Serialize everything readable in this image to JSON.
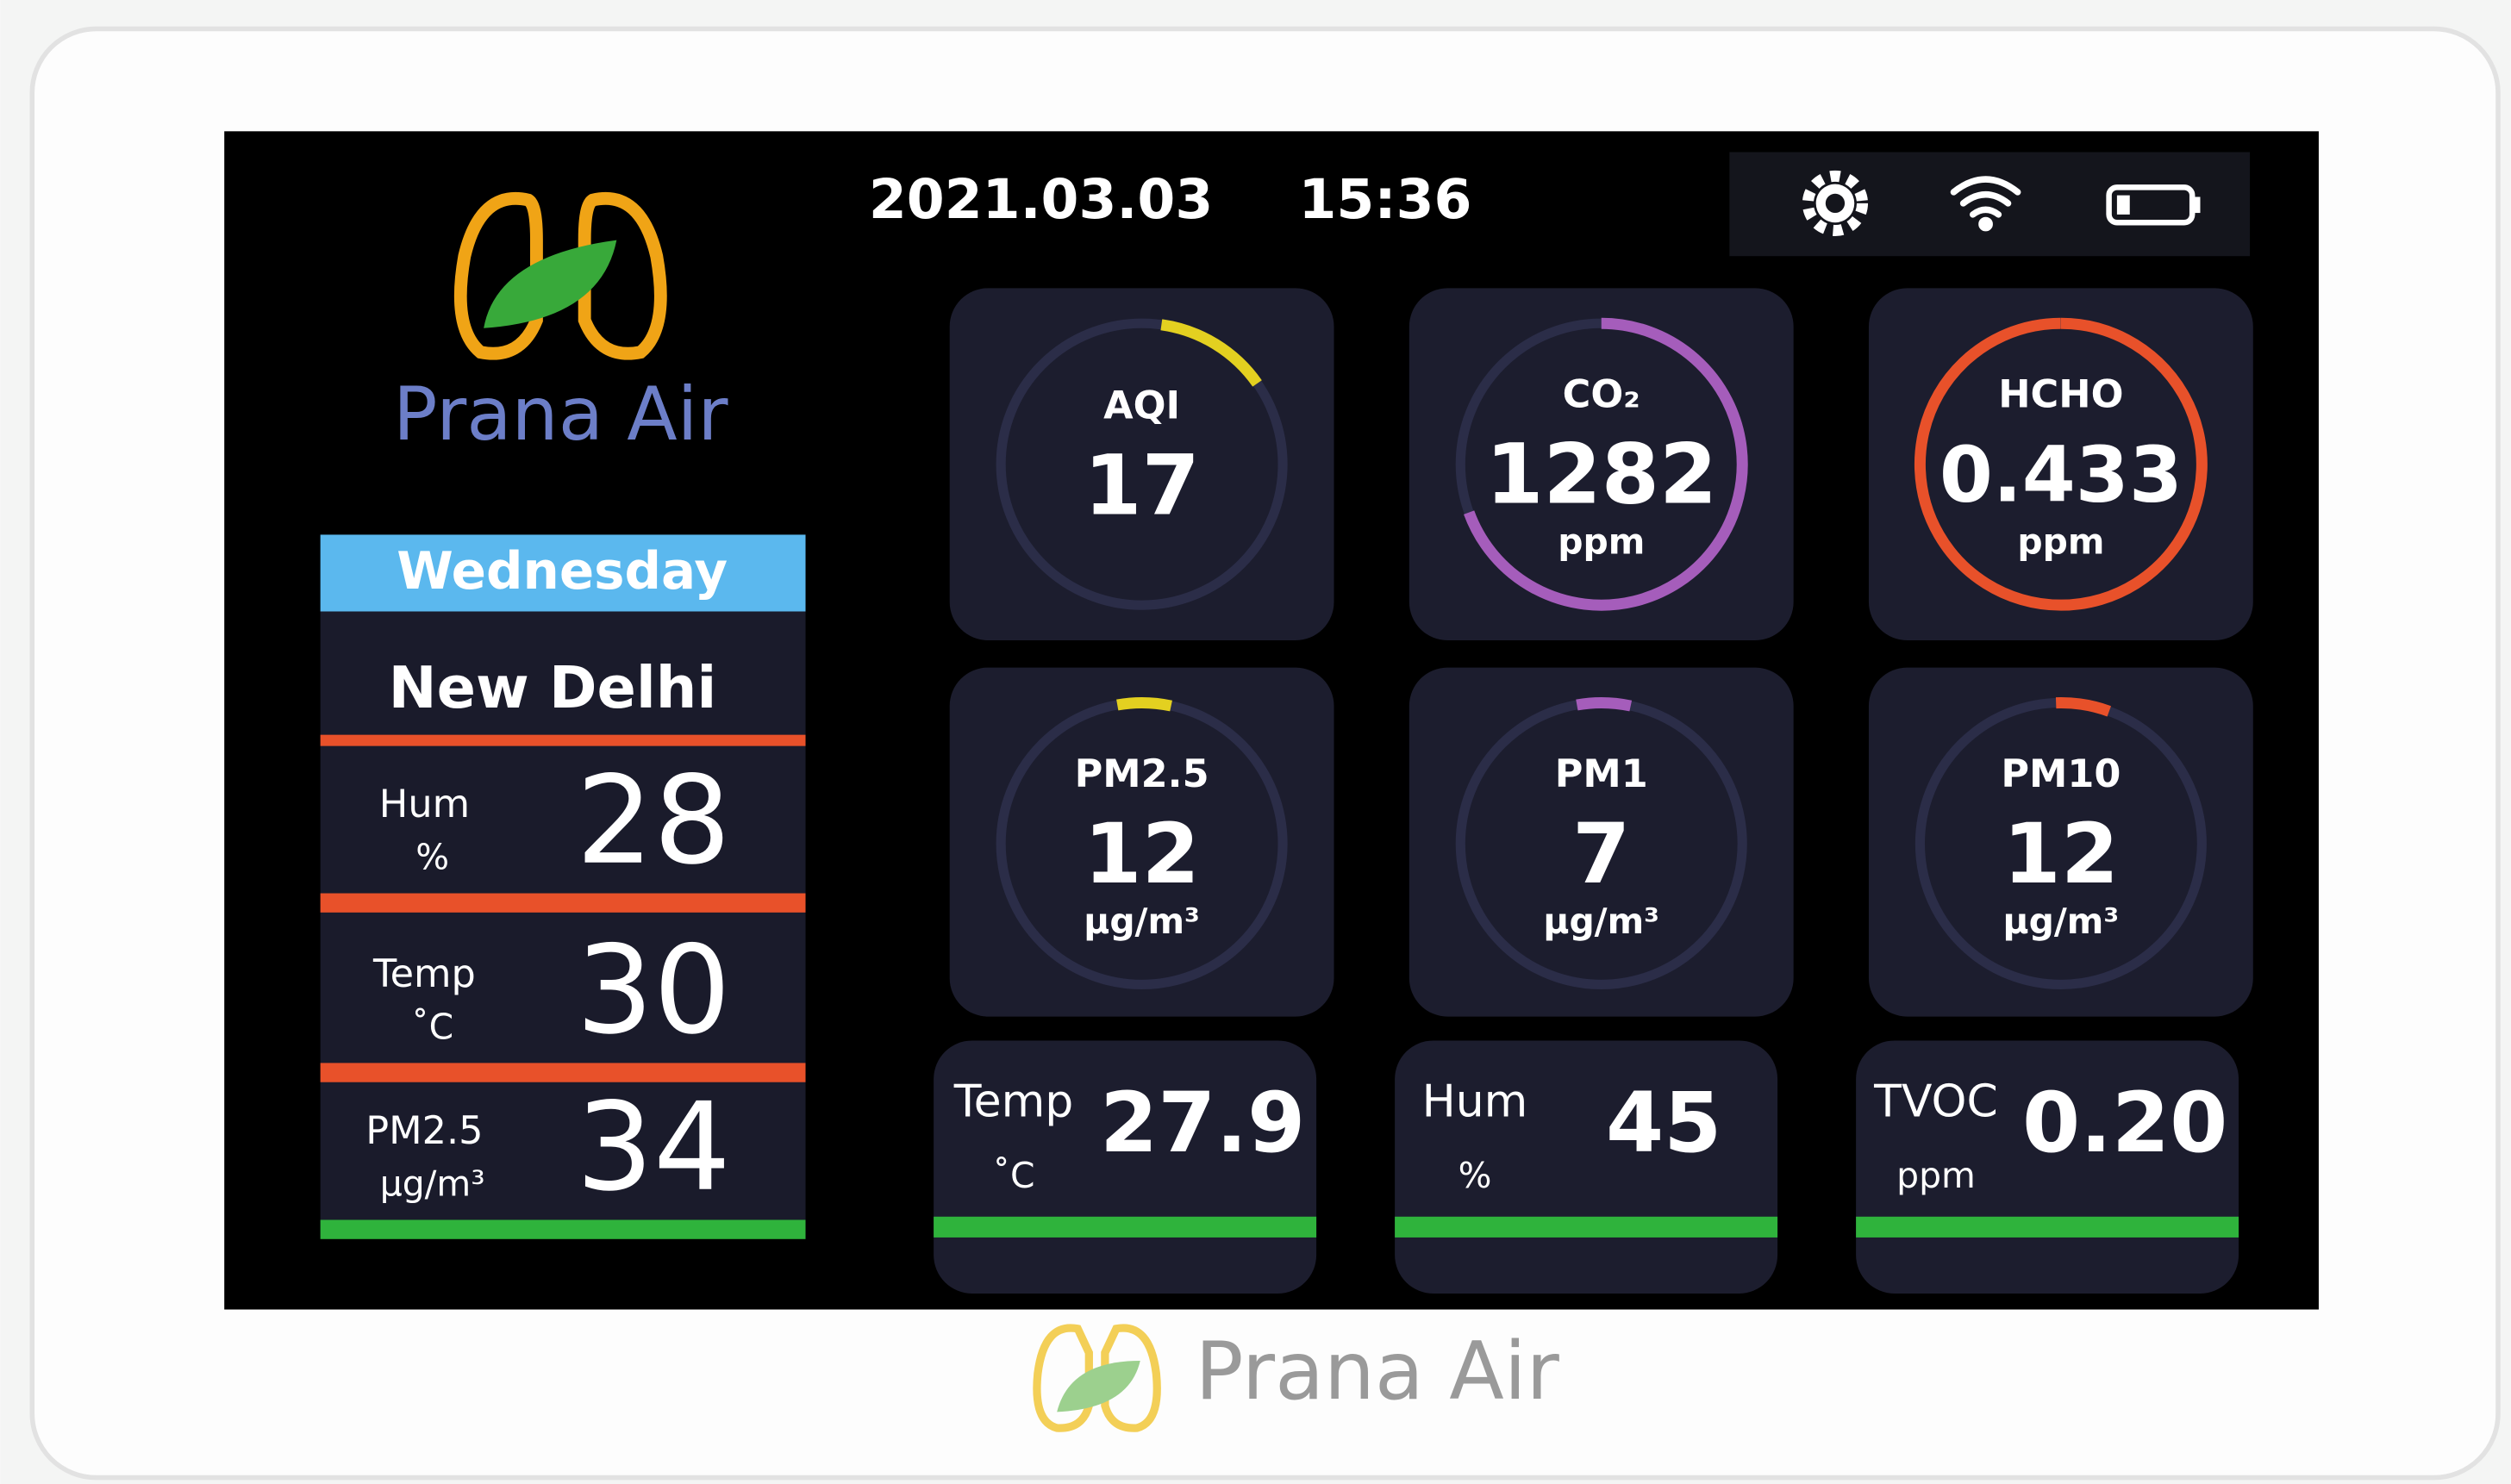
{
  "header": {
    "date": "2021.03.03",
    "time": "15:36"
  },
  "brand": {
    "name": "Prana Air"
  },
  "left_panel": {
    "day": "Wednesday",
    "city": "New Delhi",
    "rows": [
      {
        "label": "Hum",
        "unit": "%",
        "value": "28"
      },
      {
        "label": "Temp",
        "unit": "˚C",
        "value": "30"
      },
      {
        "label": "PM2.5",
        "unit": "µg/m³",
        "value": "34"
      }
    ]
  },
  "gauges": [
    {
      "label": "AQI",
      "value": "17"
    },
    {
      "label": "CO₂",
      "value": "1282",
      "unit": "ppm"
    },
    {
      "label": "HCHO",
      "value": "0.433",
      "unit": "ppm"
    },
    {
      "label": "PM2.5",
      "value": "12",
      "unit": "µg/m³"
    },
    {
      "label": "PM1",
      "value": "7",
      "unit": "µg/m³"
    },
    {
      "label": "PM10",
      "value": "12",
      "unit": "µg/m³"
    }
  ],
  "tiles": [
    {
      "label": "Temp",
      "unit": "˚C",
      "value": "27.9"
    },
    {
      "label": "Hum",
      "unit": "%",
      "value": "45"
    },
    {
      "label": "TVOC",
      "unit": "ppm",
      "value": "0.20"
    }
  ],
  "footer": {
    "brand": "Prana Air"
  }
}
